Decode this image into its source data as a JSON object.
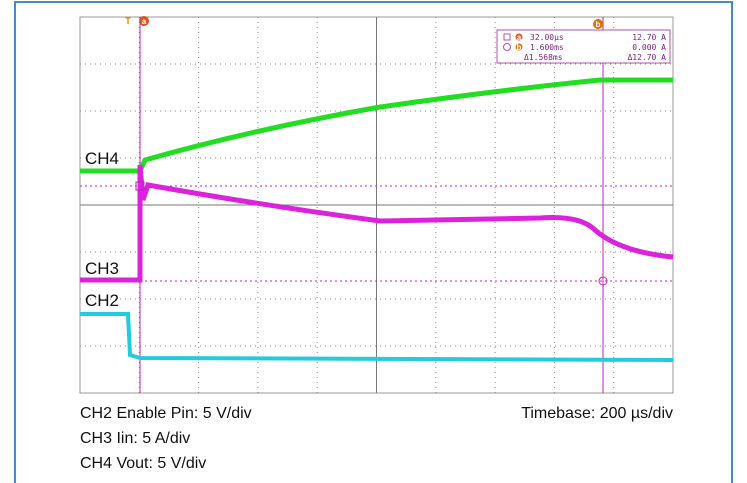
{
  "channels": {
    "ch4": "CH4",
    "ch3": "CH3",
    "ch2": "CH2"
  },
  "markers": {
    "trigger": "T",
    "a": "a",
    "b": "b"
  },
  "readout": {
    "rows": [
      [
        "32.00µs",
        "12.70 A"
      ],
      [
        "1.600ms",
        "0.000 A"
      ],
      [
        "Δ1.568ms",
        "Δ12.70 A"
      ]
    ],
    "markers": [
      "a",
      "b"
    ]
  },
  "caption": {
    "ch2": "CH2 Enable Pin: 5 V/div",
    "timebase": "Timebase: 200 µs/div",
    "ch3": "CH3 Iin: 5 A/div",
    "ch4": "CH4 Vout: 5 V/div"
  }
}
